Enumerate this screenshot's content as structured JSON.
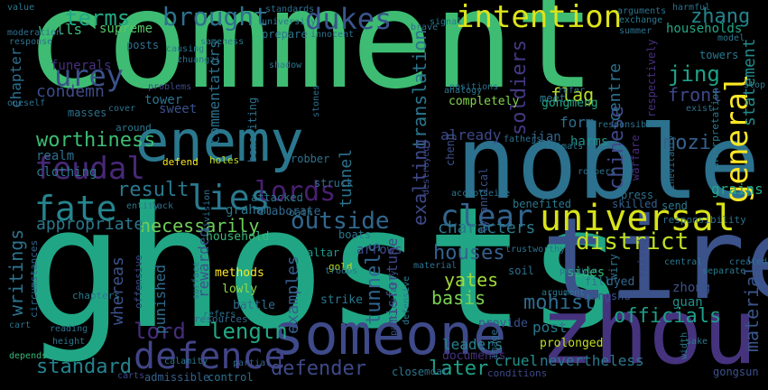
{
  "words": [
    {
      "text": "comment",
      "color": "#3ebc73"
    },
    {
      "text": "ghosts",
      "color": "#21a685"
    },
    {
      "text": "noble",
      "color": "#2c718e"
    },
    {
      "text": "tire",
      "color": "#3b528b"
    },
    {
      "text": "zhou",
      "color": "#46337e"
    },
    {
      "text": "enemy",
      "color": "#2a788e"
    },
    {
      "text": "someone",
      "color": "#3e4a89"
    },
    {
      "text": "universal",
      "color": "#d8e219"
    },
    {
      "text": "defence",
      "color": "#414487"
    },
    {
      "text": "intention",
      "color": "#dde318"
    },
    {
      "text": "feudal",
      "color": "#482878"
    },
    {
      "text": "fate",
      "color": "#25858e"
    },
    {
      "text": "lies",
      "color": "#2a788e"
    },
    {
      "text": "lords",
      "color": "#481f70"
    },
    {
      "text": "clear",
      "color": "#32648e"
    },
    {
      "text": "general",
      "color": "#fde725"
    },
    {
      "text": "dukes",
      "color": "#39558c"
    },
    {
      "text": "brought",
      "color": "#2d718e"
    },
    {
      "text": "terms",
      "color": "#22a884"
    },
    {
      "text": "district",
      "color": "#bddf26"
    },
    {
      "text": "outside",
      "color": "#31688e"
    },
    {
      "text": "worthiness",
      "color": "#3dbc74"
    },
    {
      "text": "urey",
      "color": "#3b528b"
    },
    {
      "text": "zhang",
      "color": "#25848e"
    },
    {
      "text": "soldiers",
      "color": "#443983"
    },
    {
      "text": "officials",
      "color": "#1f9e89"
    },
    {
      "text": "length",
      "color": "#22a884"
    },
    {
      "text": "defender",
      "color": "#3e4989"
    },
    {
      "text": "later",
      "color": "#1fa187"
    },
    {
      "text": "standard",
      "color": "#26828e"
    },
    {
      "text": "necessarily",
      "color": "#6ece58"
    },
    {
      "text": "result",
      "color": "#2a788e"
    },
    {
      "text": "mozi",
      "color": "#34618d"
    },
    {
      "text": "jing",
      "color": "#1fa188"
    },
    {
      "text": "materials",
      "color": "#39568c"
    },
    {
      "text": "chinese",
      "color": "#3e4a89"
    },
    {
      "text": "centre",
      "color": "#2c728e"
    },
    {
      "text": "statement",
      "color": "#238a8d"
    },
    {
      "text": "front",
      "color": "#3f4889"
    },
    {
      "text": "tunnels",
      "color": "#31668e"
    },
    {
      "text": "translation",
      "color": "#2b758e"
    },
    {
      "text": "exalting",
      "color": "#3e4989"
    },
    {
      "text": "writings",
      "color": "#2c738e"
    },
    {
      "text": "yates",
      "color": "#a0da39"
    },
    {
      "text": "mohist",
      "color": "#2f6c8e"
    },
    {
      "text": "basis",
      "color": "#7ad151"
    },
    {
      "text": "houses",
      "color": "#34618d"
    },
    {
      "text": "already",
      "color": "#3e4989"
    },
    {
      "text": "lord",
      "color": "#472d7b"
    },
    {
      "text": "whereas",
      "color": "#3b528b"
    },
    {
      "text": "flag",
      "color": "#b5de2b"
    },
    {
      "text": "tunnel",
      "color": "#2c728e"
    },
    {
      "text": "characters",
      "color": "#2a788e"
    },
    {
      "text": "examples",
      "color": "#355f8d"
    },
    {
      "text": "appropriate",
      "color": "#29798e"
    },
    {
      "text": "condemn",
      "color": "#3e4c8a"
    },
    {
      "text": "chapter",
      "color": "#2d708e"
    },
    {
      "text": "walls",
      "color": "#3bbb75"
    },
    {
      "text": "supreme",
      "color": "#55c667"
    },
    {
      "text": "tower",
      "color": "#2c728e"
    },
    {
      "text": "households",
      "color": "#22a785"
    },
    {
      "text": "arrows",
      "color": "#3e4a89"
    },
    {
      "text": "leaders",
      "color": "#26828e"
    },
    {
      "text": "cruel",
      "color": "#21918c"
    },
    {
      "text": "nevertheless",
      "color": "#2a788e"
    },
    {
      "text": "grains",
      "color": "#22a785"
    },
    {
      "text": "clothing",
      "color": "#2a788e"
    },
    {
      "text": "rewarded",
      "color": "#3b528b"
    },
    {
      "text": "punished",
      "color": "#2f6b8e"
    },
    {
      "text": "sides",
      "color": "#35b779"
    },
    {
      "text": "misfortune",
      "color": "#3f4788"
    },
    {
      "text": "commentators",
      "color": "#2c718e"
    },
    {
      "text": "form",
      "color": "#2d718e"
    },
    {
      "text": "gongmeng",
      "color": "#22a884"
    },
    {
      "text": "jian",
      "color": "#31678e"
    },
    {
      "text": "harms",
      "color": "#21918c"
    },
    {
      "text": "graham",
      "color": "#2a788e"
    },
    {
      "text": "realm",
      "color": "#2d708e"
    },
    {
      "text": "post",
      "color": "#2a788e"
    },
    {
      "text": "zhong",
      "color": "#3b528b"
    },
    {
      "text": "guan",
      "color": "#20928c"
    },
    {
      "text": "funerals",
      "color": "#46307e"
    },
    {
      "text": "sweet",
      "color": "#3b518b"
    },
    {
      "text": "elaborate",
      "color": "#31688e"
    },
    {
      "text": "completely",
      "color": "#84d44b"
    },
    {
      "text": "meet",
      "color": "#2a788e"
    },
    {
      "text": "prepare",
      "color": "#2a788e"
    },
    {
      "text": "posts",
      "color": "#2c728e"
    },
    {
      "text": "towers",
      "color": "#29798e"
    },
    {
      "text": "household",
      "color": "#37b878"
    },
    {
      "text": "methods",
      "color": "#fde725"
    },
    {
      "text": "lowly",
      "color": "#95d840"
    },
    {
      "text": "battle",
      "color": "#2e6e8e"
    },
    {
      "text": "strike",
      "color": "#2a788e"
    },
    {
      "text": "provide",
      "color": "#3b518b"
    },
    {
      "text": "documents",
      "color": "#46317e"
    },
    {
      "text": "prolonged",
      "color": "#c2df23"
    },
    {
      "text": "dyed",
      "color": "#31678e"
    },
    {
      "text": "fill",
      "color": "#2c738e"
    },
    {
      "text": "gongshu",
      "color": "#39558c"
    },
    {
      "text": "boats",
      "color": "#2a788e"
    },
    {
      "text": "altar",
      "color": "#1f988b"
    },
    {
      "text": "tyrannical",
      "color": "#3b518b"
    },
    {
      "text": "robber",
      "color": "#2c728e"
    },
    {
      "text": "attacked",
      "color": "#2a788e"
    },
    {
      "text": "struck",
      "color": "#2d708e"
    },
    {
      "text": "masses",
      "color": "#2c718e"
    },
    {
      "text": "benefiting",
      "color": "#2c728e"
    },
    {
      "text": "send",
      "color": "#2a788e"
    },
    {
      "text": "skilled",
      "color": "#35608d"
    },
    {
      "text": "wiry",
      "color": "#2c738e"
    },
    {
      "text": "soil",
      "color": "#2d708e"
    },
    {
      "text": "gold",
      "color": "#bddf26"
    },
    {
      "text": "oath",
      "color": "#2c728e"
    },
    {
      "text": "respectively",
      "color": "#46307e"
    },
    {
      "text": "responsibility",
      "color": "#2c728e"
    },
    {
      "text": "interpretation",
      "color": "#29798e"
    },
    {
      "text": "benefited",
      "color": "#2a788e"
    },
    {
      "text": "raised",
      "color": "#3e4a89"
    },
    {
      "text": "warfare",
      "color": "#472c7a"
    },
    {
      "text": "press",
      "color": "#2c728e"
    },
    {
      "text": "cheng",
      "color": "#3b518b"
    },
    {
      "text": "moat",
      "color": "#2d708e"
    },
    {
      "text": "close",
      "color": "#2a788e"
    },
    {
      "text": "control",
      "color": "#2c718e"
    },
    {
      "text": "admissible",
      "color": "#34618d"
    },
    {
      "text": "resources",
      "color": "#31688e"
    },
    {
      "text": "gongsun",
      "color": "#3b528b"
    },
    {
      "text": "conditions",
      "color": "#3e4989"
    },
    {
      "text": "image",
      "color": "#2d708e"
    },
    {
      "text": "defend",
      "color": "#f8e621"
    },
    {
      "text": "holes",
      "color": "#bfdf25"
    },
    {
      "text": "around",
      "color": "#2a788e"
    },
    {
      "text": "cover",
      "color": "#2c718e"
    },
    {
      "text": "offensive",
      "color": "#3e4a89"
    },
    {
      "text": "surface",
      "color": "#2c728e"
    },
    {
      "text": "chapters",
      "color": "#2a788e"
    },
    {
      "text": "circumstances",
      "color": "#31688e"
    },
    {
      "text": "reading",
      "color": "#2c718e"
    },
    {
      "text": "height",
      "color": "#2a788e"
    },
    {
      "text": "depends",
      "color": "#35b779"
    },
    {
      "text": "refers",
      "color": "#2c718e"
    },
    {
      "text": "calamity",
      "color": "#2a788e"
    },
    {
      "text": "partial",
      "color": "#31688e"
    },
    {
      "text": "carts",
      "color": "#3e4989"
    },
    {
      "text": "penguin",
      "color": "#2c728e"
    },
    {
      "text": "separate",
      "color": "#29798e"
    },
    {
      "text": "width",
      "color": "#2a788e"
    },
    {
      "text": "exist",
      "color": "#2d708e"
    },
    {
      "text": "responsible",
      "color": "#2c728e"
    },
    {
      "text": "positions",
      "color": "#2c718e"
    },
    {
      "text": "analogy",
      "color": "#2a788e"
    },
    {
      "text": "problems",
      "color": "#3e4a89"
    },
    {
      "text": "zhuangzi",
      "color": "#2c718e"
    },
    {
      "text": "causing",
      "color": "#2a788e"
    },
    {
      "text": "sameness",
      "color": "#2a788e"
    },
    {
      "text": "innocent",
      "color": "#2c728e"
    },
    {
      "text": "university",
      "color": "#2a788e"
    },
    {
      "text": "standards",
      "color": "#2c718e"
    },
    {
      "text": "shadow",
      "color": "#2a788e"
    },
    {
      "text": "stones",
      "color": "#2c728e"
    },
    {
      "text": "moderation",
      "color": "#2d708e"
    },
    {
      "text": "response",
      "color": "#2c718e"
    },
    {
      "text": "arguments",
      "color": "#2c728e"
    },
    {
      "text": "exchange",
      "color": "#2a788e"
    },
    {
      "text": "harmful",
      "color": "#2c718e"
    },
    {
      "text": "model",
      "color": "#2a788e"
    },
    {
      "text": "summer",
      "color": "#2c728e"
    },
    {
      "text": "brave",
      "color": "#2d708e"
    },
    {
      "text": "signal",
      "color": "#2a788e"
    },
    {
      "text": "refer",
      "color": "#2c718e"
    },
    {
      "text": "fathers",
      "color": "#2c728e"
    },
    {
      "text": "animals",
      "color": "#2a788e"
    },
    {
      "text": "inevitably",
      "color": "#2c718e"
    },
    {
      "text": "destroyed",
      "color": "#3e4989"
    },
    {
      "text": "accept",
      "color": "#2a788e"
    },
    {
      "text": "seize",
      "color": "#2c728e"
    },
    {
      "text": "particularly",
      "color": "#3b528b"
    },
    {
      "text": "defensive",
      "color": "#2a788e"
    },
    {
      "text": "trustworthy",
      "color": "#2c718e"
    },
    {
      "text": "material",
      "color": "#2c728e"
    },
    {
      "text": "argument",
      "color": "#2a788e"
    },
    {
      "text": "division",
      "color": "#2c718e"
    },
    {
      "text": "troops",
      "color": "#2a788e"
    },
    {
      "text": "created",
      "color": "#2c728e"
    },
    {
      "text": "central",
      "color": "#2a788e"
    },
    {
      "text": "lack",
      "color": "#2c718e"
    },
    {
      "text": "entity",
      "color": "#2a788e"
    },
    {
      "text": "cart",
      "color": "#2c728e"
    },
    {
      "text": "sake",
      "color": "#2a788e"
    },
    {
      "text": "oneself",
      "color": "#2c718e"
    },
    {
      "text": "value",
      "color": "#2a788e"
    },
    {
      "text": "robbers",
      "color": "#2c728e"
    },
    {
      "text": "stop",
      "color": "#2a788e"
    }
  ]
}
